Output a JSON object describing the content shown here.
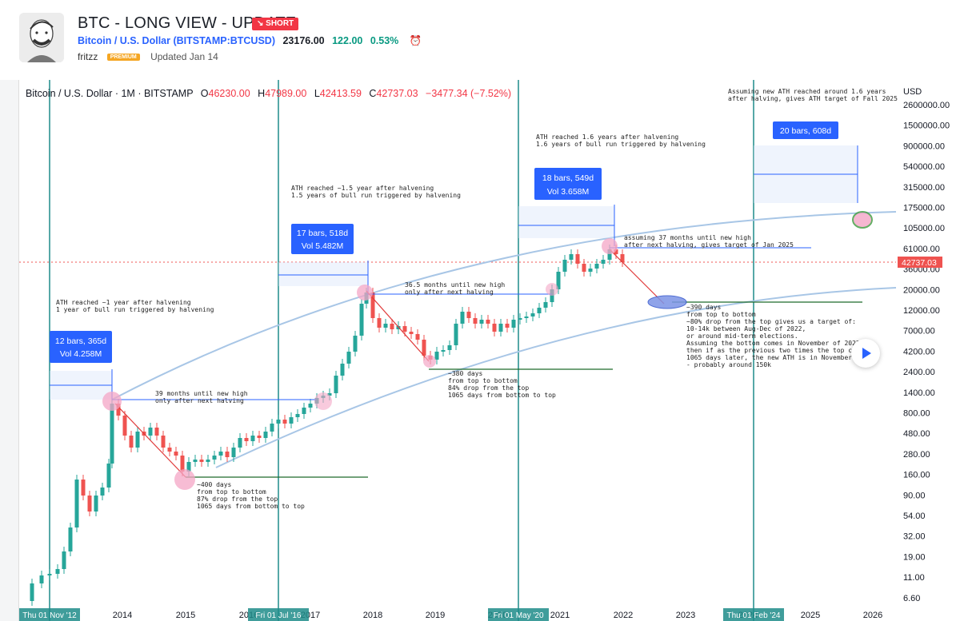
{
  "header": {
    "title": "BTC - LONG VIEW - UPDATE",
    "badge": "↘ SHORT",
    "symbol": "Bitcoin / U.S. Dollar (BITSTAMP:BTCUSD)",
    "price": "23176.00",
    "change": "122.00",
    "change_pct": "0.53%",
    "author": "fritzz",
    "premium": "PREMIUM",
    "updated": "Updated Jan 14"
  },
  "chart_header": {
    "symbol_line": "Bitcoin / U.S. Dollar · 1M · BITSTAMP",
    "o_label": "O",
    "o_value": "46230.00",
    "h_label": "H",
    "h_value": "47989.00",
    "l_label": "L",
    "l_value": "42413.59",
    "c_label": "C",
    "c_value": "42737.03",
    "change": "−3477.34 (−7.52%)"
  },
  "y_axis": {
    "unit": "USD",
    "ticks": [
      "2600000.00",
      "1500000.00",
      "900000.00",
      "540000.00",
      "315000.00",
      "175000.00",
      "105000.00",
      "61000.00",
      "36000.00",
      "20000.00",
      "12000.00",
      "7000.00",
      "4200.00",
      "2400.00",
      "1400.00",
      "800.00",
      "480.00",
      "280.00",
      "160.00",
      "90.00",
      "54.00",
      "32.00",
      "19.00",
      "11.00",
      "6.60"
    ],
    "current_price": "42737.03"
  },
  "x_axis": {
    "ticks": [
      "2014",
      "2015",
      "2016",
      "2017",
      "2018",
      "2019",
      "2020",
      "2021",
      "2022",
      "2023",
      "2024",
      "2025",
      "2026"
    ],
    "marker_labels": [
      "Thu 01 Nov '12",
      "Fri 01 Jul '16",
      "Fri 01 May '20",
      "Thu 01 Feb '24"
    ]
  },
  "annotations": {
    "m1_line1": "12 bars, 365d",
    "m1_line2": "Vol 4.258M",
    "m2_line1": "17 bars, 518d",
    "m2_line2": "Vol 5.482M",
    "m3_line1": "18 bars, 549d",
    "m3_line2": "Vol 3.658M",
    "m4_line1": "20 bars, 608d",
    "ath1_a": "ATH reached ~1 year after halvening",
    "ath1_b": "1 year of bull run triggered by halvening",
    "ath2_a": "ATH reached ~1.5 year after halvening",
    "ath2_b": "1.5 years of bull run triggered by halvening",
    "ath3_a": "ATH reached 1.6 years after halvening",
    "ath3_b": "1.6 years of bull run triggered by halvening",
    "ath4_a": "Assuming new ATH reached around 1.6 years",
    "ath4_b": "after halving, gives ATH target of Fall 2025",
    "cyc1_a": "39 months until new high",
    "cyc1_b": "only after next halving",
    "cyc2_a": "36.5 months until new high",
    "cyc2_b": "only after next halving",
    "cyc3_a": "assuming 37 months until new high",
    "cyc3_b": "after next halving, gives target of Jan 2025",
    "bot1": [
      "~400 days",
      "from top to bottom",
      "87% drop from the top",
      "1065 days from bottom to top"
    ],
    "bot2": [
      "~380 days",
      "from top to bottom",
      "84% drop from the top",
      "1065 days from bottom to top"
    ],
    "bot3": [
      "~390 days",
      "from top to bottom",
      "~80% drop from the top gives us a target of:",
      "10-14k between Aug-Dec of 2022,",
      "or around mid-term elections.",
      "Assuming the bottom comes in November of 2022",
      "then if as the previous two times the top comes l",
      "1065 days later, the new ATH is in November of",
      "- probably around 150k"
    ]
  },
  "colors": {
    "up": "#26a69a",
    "down": "#ef5350",
    "vline": "#1e8c8a",
    "range_blue": "#2962ff",
    "green_arrow": "#1f6b2a",
    "curve": "#a8c6e6",
    "pink": "#f4a6c6",
    "red_arrow": "#e03a3a"
  }
}
